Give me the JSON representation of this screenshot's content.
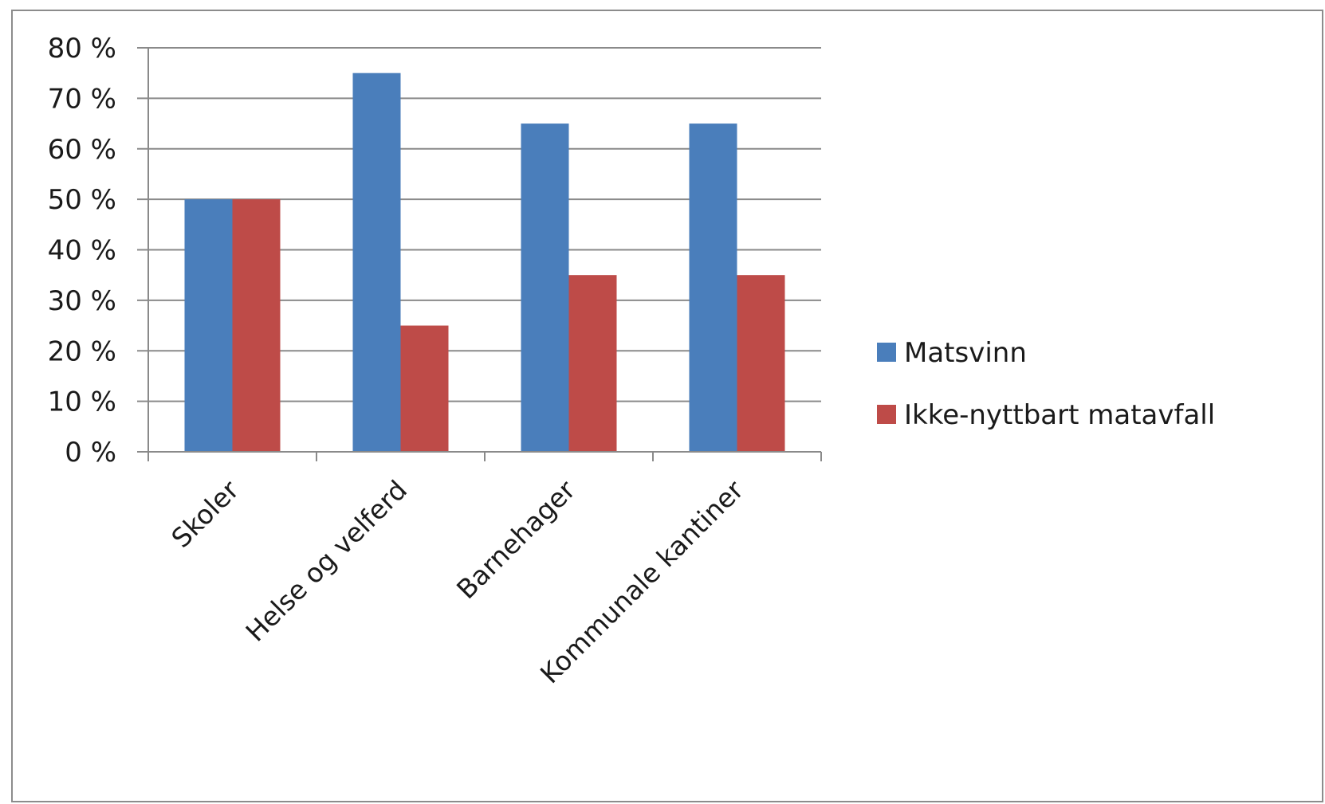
{
  "chart_data": {
    "type": "bar",
    "categories": [
      "Skoler",
      "Helse og velferd",
      "Barnehager",
      "Kommunale kantiner"
    ],
    "series": [
      {
        "name": "Matsvinn",
        "values": [
          50,
          75,
          65,
          65
        ],
        "color": "#4a7ebb"
      },
      {
        "name": "Ikke-nyttbart matavfall",
        "values": [
          50,
          25,
          35,
          35
        ],
        "color": "#be4b48"
      }
    ],
    "y_tick_labels": [
      "0 %",
      "10 %",
      "20 %",
      "30 %",
      "40 %",
      "50 %",
      "60 %",
      "70 %",
      "80 %"
    ],
    "ylim": [
      0,
      80
    ],
    "y_unit": "%",
    "grid": true,
    "legend_position": "right",
    "title": "",
    "xlabel": "",
    "ylabel": ""
  }
}
